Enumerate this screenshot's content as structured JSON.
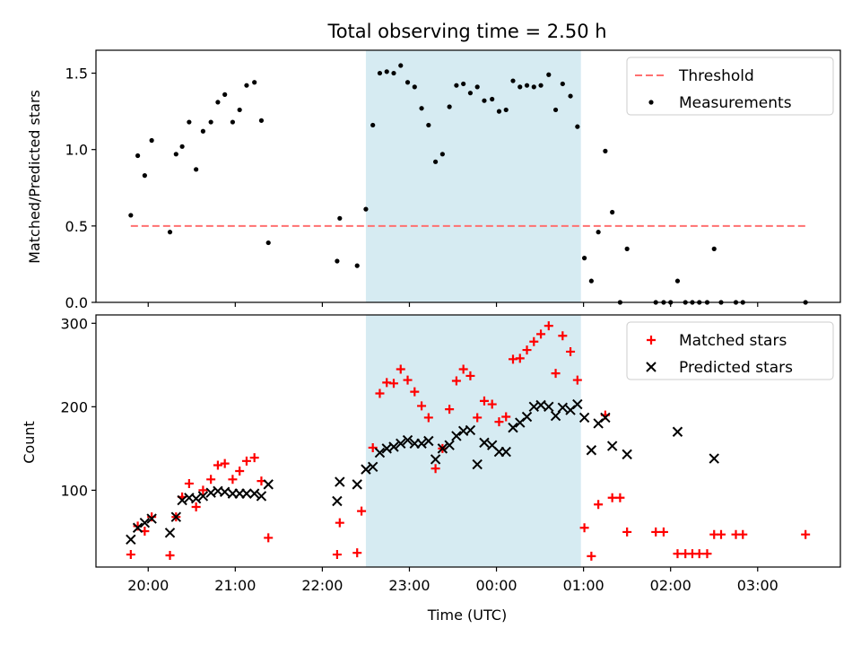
{
  "chart_data": [
    {
      "type": "scatter",
      "title": "Total observing time = 2.50 h",
      "ylabel": "Matched/Predicted stars",
      "xlabel": "",
      "x_unit": "hours since 19:00 UTC",
      "xlim": [
        19.4,
        27.95
      ],
      "ylim": [
        0,
        1.65
      ],
      "yticks": [
        0.0,
        0.5,
        1.0,
        1.5
      ],
      "ytick_labels": [
        "0.0",
        "0.5",
        "1.0",
        "1.5"
      ],
      "highlight_span": [
        22.5,
        24.97
      ],
      "highlight_color": "#add8e6",
      "threshold": {
        "name": "Threshold",
        "y": 0.5,
        "x_range": [
          19.8,
          27.55
        ],
        "color": "#ff7070",
        "style": "dashed"
      },
      "series": [
        {
          "name": "Measurements",
          "color": "#000000",
          "marker": "dot",
          "points": [
            [
              19.8,
              0.57
            ],
            [
              19.88,
              0.96
            ],
            [
              19.96,
              0.83
            ],
            [
              20.04,
              1.06
            ],
            [
              20.25,
              0.46
            ],
            [
              20.32,
              0.97
            ],
            [
              20.39,
              1.02
            ],
            [
              20.47,
              1.18
            ],
            [
              20.55,
              0.87
            ],
            [
              20.63,
              1.12
            ],
            [
              20.72,
              1.18
            ],
            [
              20.8,
              1.31
            ],
            [
              20.88,
              1.36
            ],
            [
              20.97,
              1.18
            ],
            [
              21.05,
              1.26
            ],
            [
              21.13,
              1.42
            ],
            [
              21.22,
              1.44
            ],
            [
              21.3,
              1.19
            ],
            [
              21.38,
              0.39
            ],
            [
              22.17,
              0.27
            ],
            [
              22.2,
              0.55
            ],
            [
              22.4,
              0.24
            ],
            [
              22.5,
              0.61
            ],
            [
              22.58,
              1.16
            ],
            [
              22.66,
              1.5
            ],
            [
              22.74,
              1.51
            ],
            [
              22.82,
              1.5
            ],
            [
              22.9,
              1.55
            ],
            [
              22.98,
              1.44
            ],
            [
              23.06,
              1.41
            ],
            [
              23.14,
              1.27
            ],
            [
              23.22,
              1.16
            ],
            [
              23.3,
              0.92
            ],
            [
              23.38,
              0.97
            ],
            [
              23.46,
              1.28
            ],
            [
              23.54,
              1.42
            ],
            [
              23.62,
              1.43
            ],
            [
              23.7,
              1.37
            ],
            [
              23.78,
              1.41
            ],
            [
              23.86,
              1.32
            ],
            [
              23.95,
              1.33
            ],
            [
              24.03,
              1.25
            ],
            [
              24.11,
              1.26
            ],
            [
              24.19,
              1.45
            ],
            [
              24.27,
              1.41
            ],
            [
              24.35,
              1.42
            ],
            [
              24.43,
              1.41
            ],
            [
              24.51,
              1.42
            ],
            [
              24.6,
              1.49
            ],
            [
              24.68,
              1.26
            ],
            [
              24.76,
              1.43
            ],
            [
              24.85,
              1.35
            ],
            [
              24.93,
              1.15
            ],
            [
              25.01,
              0.29
            ],
            [
              25.09,
              0.14
            ],
            [
              25.17,
              0.46
            ],
            [
              25.25,
              0.99
            ],
            [
              25.33,
              0.59
            ],
            [
              25.42,
              0.0
            ],
            [
              25.5,
              0.35
            ],
            [
              25.83,
              0.0
            ],
            [
              25.92,
              0.0
            ],
            [
              26.0,
              0.0
            ],
            [
              26.08,
              0.14
            ],
            [
              26.17,
              0.0
            ],
            [
              26.25,
              0.0
            ],
            [
              26.33,
              0.0
            ],
            [
              26.42,
              0.0
            ],
            [
              26.5,
              0.35
            ],
            [
              26.58,
              0.0
            ],
            [
              26.75,
              0.0
            ],
            [
              26.83,
              0.0
            ],
            [
              27.55,
              0.0
            ]
          ]
        }
      ],
      "legend": {
        "placement": "top-right",
        "entries": [
          "Threshold",
          "Measurements"
        ]
      }
    },
    {
      "type": "scatter",
      "title": "",
      "xlabel": "Time (UTC)",
      "ylabel": "Count",
      "x_unit": "hours since 19:00 UTC",
      "xlim": [
        19.4,
        27.95
      ],
      "ylim": [
        8,
        310
      ],
      "yticks": [
        100,
        200,
        300
      ],
      "ytick_labels": [
        "100",
        "200",
        "300"
      ],
      "xticks": [
        20,
        21,
        22,
        23,
        24,
        25,
        26,
        27
      ],
      "xtick_labels": [
        "20:00",
        "21:00",
        "22:00",
        "23:00",
        "00:00",
        "01:00",
        "02:00",
        "03:00"
      ],
      "highlight_span": [
        22.5,
        24.97
      ],
      "highlight_color": "#add8e6",
      "series": [
        {
          "name": "Matched stars",
          "color": "#ff0000",
          "marker": "plus",
          "points": [
            [
              19.8,
              23
            ],
            [
              19.88,
              57
            ],
            [
              19.96,
              51
            ],
            [
              20.04,
              68
            ],
            [
              20.25,
              22
            ],
            [
              20.32,
              68
            ],
            [
              20.39,
              92
            ],
            [
              20.47,
              108
            ],
            [
              20.55,
              80
            ],
            [
              20.63,
              100
            ],
            [
              20.72,
              113
            ],
            [
              20.8,
              130
            ],
            [
              20.88,
              132
            ],
            [
              20.97,
              113
            ],
            [
              21.05,
              123
            ],
            [
              21.13,
              135
            ],
            [
              21.22,
              139
            ],
            [
              21.3,
              111
            ],
            [
              21.38,
              43
            ],
            [
              22.17,
              23
            ],
            [
              22.2,
              61
            ],
            [
              22.4,
              25
            ],
            [
              22.45,
              75
            ],
            [
              22.58,
              151
            ],
            [
              22.66,
              216
            ],
            [
              22.74,
              229
            ],
            [
              22.82,
              228
            ],
            [
              22.9,
              245
            ],
            [
              22.98,
              232
            ],
            [
              23.06,
              218
            ],
            [
              23.14,
              201
            ],
            [
              23.22,
              187
            ],
            [
              23.3,
              126
            ],
            [
              23.38,
              150
            ],
            [
              23.46,
              197
            ],
            [
              23.54,
              231
            ],
            [
              23.62,
              245
            ],
            [
              23.7,
              237
            ],
            [
              23.78,
              187
            ],
            [
              23.86,
              207
            ],
            [
              23.95,
              203
            ],
            [
              24.03,
              182
            ],
            [
              24.11,
              188
            ],
            [
              24.19,
              257
            ],
            [
              24.27,
              258
            ],
            [
              24.35,
              268
            ],
            [
              24.43,
              278
            ],
            [
              24.51,
              287
            ],
            [
              24.6,
              297
            ],
            [
              24.68,
              240
            ],
            [
              24.76,
              285
            ],
            [
              24.85,
              266
            ],
            [
              24.93,
              232
            ],
            [
              25.01,
              55
            ],
            [
              25.09,
              21
            ],
            [
              25.17,
              83
            ],
            [
              25.25,
              190
            ],
            [
              25.33,
              91
            ],
            [
              25.42,
              91
            ],
            [
              25.5,
              50
            ],
            [
              25.83,
              50
            ],
            [
              25.92,
              50
            ],
            [
              26.08,
              24
            ],
            [
              26.17,
              24
            ],
            [
              26.25,
              24
            ],
            [
              26.33,
              24
            ],
            [
              26.42,
              24
            ],
            [
              26.5,
              47
            ],
            [
              26.58,
              47
            ],
            [
              26.75,
              47
            ],
            [
              26.83,
              47
            ],
            [
              27.55,
              47
            ]
          ]
        },
        {
          "name": "Predicted stars",
          "color": "#000000",
          "marker": "x",
          "points": [
            [
              19.8,
              41
            ],
            [
              19.88,
              55
            ],
            [
              19.96,
              61
            ],
            [
              20.04,
              66
            ],
            [
              20.25,
              49
            ],
            [
              20.32,
              68
            ],
            [
              20.39,
              88
            ],
            [
              20.47,
              91
            ],
            [
              20.55,
              90
            ],
            [
              20.63,
              93
            ],
            [
              20.72,
              97
            ],
            [
              20.8,
              99
            ],
            [
              20.88,
              98
            ],
            [
              20.97,
              96
            ],
            [
              21.05,
              96
            ],
            [
              21.13,
              96
            ],
            [
              21.22,
              96
            ],
            [
              21.3,
              93
            ],
            [
              21.38,
              107
            ],
            [
              22.17,
              87
            ],
            [
              22.2,
              110
            ],
            [
              22.4,
              107
            ],
            [
              22.5,
              125
            ],
            [
              22.58,
              128
            ],
            [
              22.66,
              145
            ],
            [
              22.74,
              150
            ],
            [
              22.82,
              152
            ],
            [
              22.9,
              156
            ],
            [
              22.98,
              160
            ],
            [
              23.06,
              156
            ],
            [
              23.14,
              156
            ],
            [
              23.22,
              159
            ],
            [
              23.3,
              137
            ],
            [
              23.38,
              150
            ],
            [
              23.46,
              154
            ],
            [
              23.54,
              165
            ],
            [
              23.62,
              171
            ],
            [
              23.7,
              172
            ],
            [
              23.78,
              131
            ],
            [
              23.86,
              157
            ],
            [
              23.95,
              154
            ],
            [
              24.03,
              146
            ],
            [
              24.11,
              146
            ],
            [
              24.19,
              175
            ],
            [
              24.27,
              181
            ],
            [
              24.35,
              188
            ],
            [
              24.43,
              200
            ],
            [
              24.51,
              202
            ],
            [
              24.6,
              200
            ],
            [
              24.68,
              189
            ],
            [
              24.76,
              199
            ],
            [
              24.85,
              196
            ],
            [
              24.93,
              203
            ],
            [
              25.01,
              187
            ],
            [
              25.09,
              148
            ],
            [
              25.17,
              180
            ],
            [
              25.25,
              187
            ],
            [
              25.33,
              153
            ],
            [
              25.5,
              143
            ],
            [
              26.08,
              170
            ],
            [
              26.5,
              138
            ]
          ]
        }
      ],
      "legend": {
        "placement": "top-right",
        "entries": [
          "Matched stars",
          "Predicted stars"
        ]
      }
    }
  ]
}
